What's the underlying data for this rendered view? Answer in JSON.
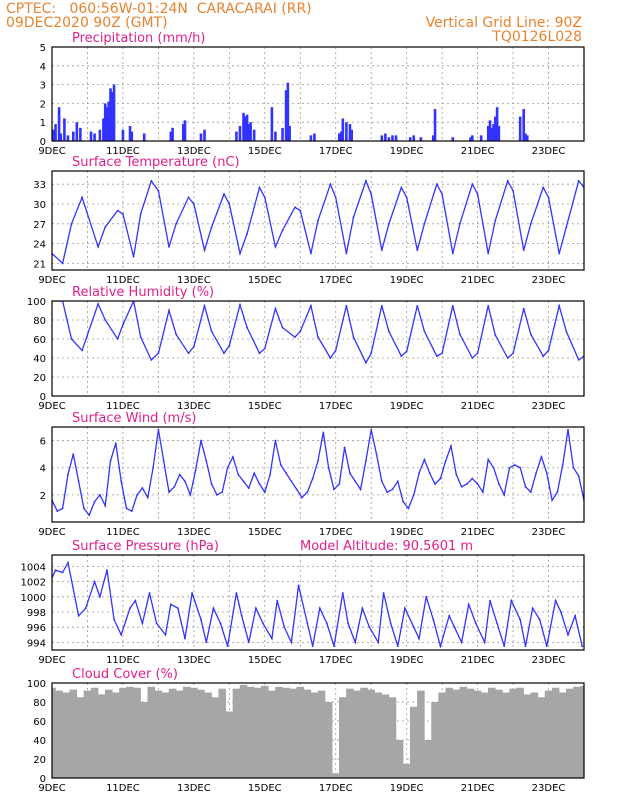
{
  "header": {
    "line1": "CPTEC:   060:56W-01:24N  CARACARAI (RR)",
    "line2": "09DEC2020 90Z (GMT)",
    "grid_note": "Vertical Grid Line: 90Z",
    "run_code": "TQ0126L028"
  },
  "colors": {
    "header": "#e8822e",
    "title": "#e0208c",
    "series": "#3333ff",
    "cloud": "#a6a6a6",
    "grid": "#9a9a9a"
  },
  "chart_data": [
    {
      "type": "bar",
      "title": "Precipitation (mm/h)",
      "ylim": [
        0,
        5
      ],
      "yticks": [
        0,
        1,
        2,
        3,
        4,
        5
      ],
      "xlim": [
        9,
        24
      ],
      "xticks": [
        "9DEC",
        "11DEC",
        "13DEC",
        "15DEC",
        "17DEC",
        "19DEC",
        "21DEC",
        "23DEC"
      ],
      "grid": true,
      "x": [
        9.05,
        9.1,
        9.2,
        9.25,
        9.35,
        9.45,
        9.6,
        9.7,
        9.8,
        10.1,
        10.2,
        10.35,
        10.45,
        10.5,
        10.55,
        10.6,
        10.65,
        10.7,
        10.75,
        11.0,
        11.2,
        11.25,
        11.6,
        12.35,
        12.4,
        12.7,
        12.75,
        13.2,
        13.3,
        14.2,
        14.3,
        14.4,
        14.45,
        14.5,
        14.55,
        14.6,
        14.7,
        15.2,
        15.3,
        15.5,
        15.6,
        15.65,
        15.7,
        16.3,
        16.4,
        17.1,
        17.15,
        17.2,
        17.3,
        17.4,
        17.45,
        18.3,
        18.4,
        18.5,
        18.6,
        18.7,
        19.1,
        19.2,
        19.4,
        19.75,
        19.8,
        20.3,
        20.8,
        20.85,
        21.1,
        21.3,
        21.35,
        21.4,
        21.45,
        21.5,
        21.55,
        21.6,
        22.2,
        22.3,
        22.35,
        22.4
      ],
      "values": [
        0.6,
        0.9,
        1.8,
        0.4,
        1.2,
        0.3,
        0.5,
        1.0,
        0.7,
        0.5,
        0.4,
        0.6,
        1.2,
        2.0,
        1.8,
        2.1,
        2.8,
        2.6,
        3.0,
        0.6,
        0.8,
        0.5,
        0.4,
        0.5,
        0.7,
        0.9,
        1.1,
        0.4,
        0.6,
        0.5,
        0.8,
        1.5,
        1.3,
        1.4,
        0.9,
        1.0,
        0.6,
        1.8,
        0.5,
        0.7,
        2.7,
        3.1,
        0.8,
        0.3,
        0.4,
        0.4,
        0.5,
        1.2,
        1.0,
        0.9,
        0.6,
        0.3,
        0.4,
        0.2,
        0.3,
        0.3,
        0.2,
        0.3,
        0.2,
        0.3,
        1.7,
        0.2,
        0.2,
        0.3,
        0.3,
        0.8,
        1.1,
        0.7,
        0.9,
        1.3,
        1.8,
        0.8,
        1.3,
        1.7,
        0.4,
        0.3
      ]
    },
    {
      "type": "line",
      "title": "Surface Temperature (nC)",
      "ylim": [
        20,
        35
      ],
      "yticks": [
        21,
        24,
        27,
        30,
        33
      ],
      "xlim": [
        9,
        24
      ],
      "xticks": [
        "9DEC",
        "11DEC",
        "13DEC",
        "15DEC",
        "17DEC",
        "19DEC",
        "21DEC",
        "23DEC"
      ],
      "grid": true,
      "x": [
        9.0,
        9.3,
        9.55,
        9.85,
        10.3,
        10.5,
        10.85,
        11.0,
        11.3,
        11.5,
        11.8,
        12.0,
        12.3,
        12.5,
        12.85,
        13.0,
        13.3,
        13.5,
        13.85,
        14.0,
        14.3,
        14.5,
        14.85,
        15.0,
        15.3,
        15.5,
        15.85,
        16.0,
        16.3,
        16.5,
        16.85,
        17.0,
        17.3,
        17.5,
        17.85,
        18.0,
        18.3,
        18.5,
        18.85,
        19.0,
        19.3,
        19.5,
        19.85,
        20.0,
        20.3,
        20.5,
        20.85,
        21.0,
        21.3,
        21.5,
        21.85,
        22.0,
        22.3,
        22.5,
        22.85,
        23.0,
        23.3,
        23.5,
        23.85,
        24.0
      ],
      "values": [
        22.5,
        21.0,
        27.0,
        31.0,
        23.5,
        26.5,
        29.0,
        28.5,
        22.0,
        28.5,
        33.5,
        32.0,
        23.5,
        27.0,
        31.0,
        30.0,
        23.0,
        26.5,
        31.5,
        30.0,
        22.5,
        25.5,
        32.5,
        31.0,
        23.5,
        26.0,
        29.5,
        29.0,
        22.5,
        27.5,
        33.0,
        31.0,
        22.5,
        28.0,
        33.5,
        31.5,
        23.0,
        27.0,
        32.5,
        31.0,
        23.0,
        27.0,
        33.0,
        31.5,
        22.5,
        27.0,
        33.0,
        31.5,
        22.5,
        27.5,
        33.5,
        32.0,
        23.0,
        27.0,
        32.5,
        31.0,
        22.5,
        26.5,
        33.5,
        32.5
      ]
    },
    {
      "type": "line",
      "title": "Relative Humidity (%)",
      "ylim": [
        0,
        100
      ],
      "yticks": [
        0,
        20,
        40,
        60,
        80,
        100
      ],
      "xlim": [
        9,
        24
      ],
      "xticks": [
        "9DEC",
        "11DEC",
        "13DEC",
        "15DEC",
        "17DEC",
        "19DEC",
        "21DEC",
        "23DEC"
      ],
      "grid": true,
      "x": [
        9.0,
        9.3,
        9.55,
        9.85,
        10.3,
        10.5,
        10.85,
        11.0,
        11.3,
        11.5,
        11.8,
        12.0,
        12.3,
        12.5,
        12.85,
        13.0,
        13.3,
        13.5,
        13.85,
        14.0,
        14.3,
        14.5,
        14.85,
        15.0,
        15.3,
        15.5,
        15.85,
        16.0,
        16.3,
        16.5,
        16.85,
        17.0,
        17.3,
        17.5,
        17.85,
        18.0,
        18.3,
        18.5,
        18.85,
        19.0,
        19.3,
        19.5,
        19.85,
        20.0,
        20.3,
        20.5,
        20.85,
        21.0,
        21.3,
        21.5,
        21.85,
        22.0,
        22.3,
        22.5,
        22.85,
        23.0,
        23.3,
        23.5,
        23.85,
        24.0
      ],
      "values": [
        100,
        100,
        60,
        48,
        97,
        80,
        60,
        75,
        100,
        62,
        38,
        45,
        90,
        65,
        45,
        52,
        95,
        68,
        45,
        53,
        96,
        72,
        45,
        50,
        92,
        72,
        62,
        68,
        95,
        62,
        40,
        48,
        95,
        62,
        35,
        45,
        95,
        68,
        42,
        47,
        95,
        68,
        42,
        45,
        95,
        65,
        40,
        45,
        95,
        64,
        40,
        45,
        92,
        65,
        42,
        48,
        95,
        68,
        38,
        42
      ]
    },
    {
      "type": "line",
      "title": "Surface Wind (m/s)",
      "ylim": [
        0,
        7
      ],
      "yticks": [
        2,
        4,
        6
      ],
      "xlim": [
        9,
        24
      ],
      "xticks": [
        "9DEC",
        "11DEC",
        "13DEC",
        "15DEC",
        "17DEC",
        "19DEC",
        "21DEC",
        "23DEC"
      ],
      "grid": true,
      "x": [
        9.0,
        9.15,
        9.3,
        9.45,
        9.6,
        9.75,
        9.9,
        10.05,
        10.2,
        10.35,
        10.5,
        10.65,
        10.8,
        10.95,
        11.1,
        11.25,
        11.4,
        11.55,
        11.7,
        11.85,
        12.0,
        12.15,
        12.3,
        12.45,
        12.6,
        12.75,
        12.9,
        13.05,
        13.2,
        13.35,
        13.5,
        13.65,
        13.8,
        13.95,
        14.1,
        14.25,
        14.4,
        14.55,
        14.7,
        14.85,
        15.0,
        15.15,
        15.3,
        15.45,
        15.6,
        15.75,
        15.9,
        16.05,
        16.2,
        16.35,
        16.5,
        16.65,
        16.8,
        16.95,
        17.1,
        17.25,
        17.4,
        17.55,
        17.7,
        17.85,
        18.0,
        18.15,
        18.3,
        18.45,
        18.6,
        18.75,
        18.9,
        19.05,
        19.2,
        19.35,
        19.5,
        19.65,
        19.8,
        19.95,
        20.1,
        20.25,
        20.4,
        20.55,
        20.7,
        20.85,
        21.0,
        21.15,
        21.3,
        21.45,
        21.6,
        21.75,
        21.9,
        22.05,
        22.2,
        22.35,
        22.5,
        22.65,
        22.8,
        22.95,
        23.1,
        23.25,
        23.4,
        23.55,
        23.7,
        23.85,
        24.0
      ],
      "values": [
        1.6,
        0.8,
        1.0,
        3.5,
        5.0,
        3.0,
        1.0,
        0.5,
        1.5,
        2.0,
        1.2,
        4.5,
        5.8,
        3.0,
        1.0,
        0.8,
        2.0,
        2.5,
        1.8,
        4.0,
        6.8,
        4.5,
        2.2,
        2.6,
        3.5,
        3.0,
        2.0,
        3.8,
        6.0,
        4.5,
        2.8,
        2.0,
        2.2,
        4.0,
        4.8,
        3.5,
        3.0,
        2.5,
        3.6,
        2.8,
        2.2,
        3.5,
        6.0,
        4.2,
        3.6,
        3.0,
        2.4,
        1.8,
        2.2,
        3.2,
        4.5,
        6.6,
        4.0,
        2.4,
        2.8,
        5.5,
        3.6,
        3.0,
        2.4,
        4.5,
        6.8,
        5.0,
        3.0,
        2.2,
        2.4,
        3.0,
        1.5,
        1.0,
        2.0,
        3.6,
        4.6,
        3.6,
        2.8,
        3.2,
        4.5,
        5.6,
        3.5,
        2.6,
        2.8,
        3.2,
        2.8,
        2.2,
        4.6,
        4.0,
        2.8,
        2.0,
        4.0,
        4.2,
        4.0,
        2.6,
        2.2,
        3.6,
        4.8,
        3.6,
        1.6,
        2.2,
        4.2,
        6.8,
        4.0,
        3.4,
        1.6
      ]
    },
    {
      "type": "line",
      "title": "Surface Pressure (hPa)",
      "annotation": "Model Altitude: 90.5601 m",
      "ylim": [
        993,
        1005.5
      ],
      "yticks": [
        994,
        996,
        998,
        1000,
        1002,
        1004
      ],
      "xlim": [
        9,
        24
      ],
      "xticks": [
        "9DEC",
        "11DEC",
        "13DEC",
        "15DEC",
        "17DEC",
        "19DEC",
        "21DEC",
        "23DEC"
      ],
      "grid": true,
      "x": [
        9.0,
        9.1,
        9.3,
        9.45,
        9.75,
        9.95,
        10.2,
        10.35,
        10.55,
        10.75,
        10.95,
        11.2,
        11.35,
        11.55,
        11.75,
        11.95,
        12.2,
        12.35,
        12.55,
        12.75,
        12.95,
        13.2,
        13.35,
        13.55,
        13.75,
        13.95,
        14.2,
        14.35,
        14.55,
        14.75,
        14.95,
        15.2,
        15.35,
        15.55,
        15.75,
        15.95,
        16.2,
        16.35,
        16.55,
        16.75,
        16.95,
        17.2,
        17.35,
        17.55,
        17.75,
        17.95,
        18.2,
        18.35,
        18.55,
        18.75,
        18.95,
        19.2,
        19.35,
        19.55,
        19.75,
        19.95,
        20.2,
        20.35,
        20.55,
        20.75,
        20.95,
        21.2,
        21.35,
        21.55,
        21.75,
        21.95,
        22.2,
        22.35,
        22.55,
        22.75,
        22.95,
        23.2,
        23.35,
        23.55,
        23.75,
        23.95
      ],
      "values": [
        1002.5,
        1003.5,
        1003.2,
        1004.5,
        997.5,
        998.5,
        1002.0,
        1000.0,
        1003.5,
        997.0,
        995.0,
        998.5,
        999.5,
        996.5,
        1000.5,
        996.5,
        995.0,
        999.0,
        998.5,
        994.5,
        1000.5,
        997.0,
        994.0,
        998.5,
        996.5,
        993.5,
        1000.5,
        997.5,
        994.0,
        998.5,
        996.5,
        994.5,
        999.5,
        996.0,
        994.0,
        1001.5,
        996.5,
        993.5,
        998.5,
        996.5,
        993.5,
        1000.5,
        996.5,
        994.0,
        998.5,
        996.0,
        994.0,
        1000.5,
        996.5,
        993.5,
        998.5,
        996.0,
        994.5,
        1000.0,
        997.0,
        993.5,
        997.5,
        996.0,
        994.0,
        999.0,
        996.5,
        994.0,
        999.5,
        996.5,
        993.5,
        999.5,
        997.0,
        993.5,
        998.5,
        997.0,
        993.5,
        999.5,
        998.0,
        995.0,
        997.5,
        993.5
      ]
    },
    {
      "type": "area",
      "title": "Cloud Cover (%)",
      "ylim": [
        0,
        100
      ],
      "yticks": [
        0,
        20,
        40,
        60,
        80,
        100
      ],
      "xlim": [
        9,
        24
      ],
      "xticks": [
        "9DEC",
        "11DEC",
        "13DEC",
        "15DEC",
        "17DEC",
        "19DEC",
        "21DEC",
        "23DEC"
      ],
      "grid": true,
      "x": [
        9.0,
        9.2,
        9.4,
        9.6,
        9.8,
        10.0,
        10.2,
        10.4,
        10.6,
        10.8,
        11.0,
        11.2,
        11.4,
        11.6,
        11.8,
        12.0,
        12.2,
        12.4,
        12.6,
        12.8,
        13.0,
        13.2,
        13.4,
        13.6,
        13.8,
        14.0,
        14.2,
        14.4,
        14.6,
        14.8,
        15.0,
        15.2,
        15.4,
        15.6,
        15.8,
        16.0,
        16.2,
        16.4,
        16.6,
        16.8,
        17.0,
        17.2,
        17.4,
        17.6,
        17.8,
        18.0,
        18.2,
        18.4,
        18.6,
        18.8,
        19.0,
        19.2,
        19.4,
        19.6,
        19.8,
        20.0,
        20.2,
        20.4,
        20.6,
        20.8,
        21.0,
        21.2,
        21.4,
        21.6,
        21.8,
        22.0,
        22.2,
        22.4,
        22.6,
        22.8,
        23.0,
        23.2,
        23.4,
        23.6,
        23.8,
        24.0
      ],
      "values": [
        95,
        92,
        90,
        93,
        85,
        92,
        95,
        88,
        93,
        90,
        95,
        96,
        95,
        80,
        96,
        92,
        90,
        94,
        92,
        96,
        95,
        93,
        90,
        85,
        94,
        70,
        94,
        98,
        96,
        95,
        97,
        92,
        96,
        95,
        94,
        96,
        93,
        90,
        92,
        80,
        5,
        85,
        94,
        92,
        95,
        93,
        90,
        88,
        85,
        40,
        15,
        75,
        92,
        40,
        80,
        90,
        95,
        93,
        96,
        94,
        92,
        90,
        95,
        93,
        90,
        94,
        95,
        88,
        90,
        85,
        92,
        95,
        90,
        94,
        96,
        97
      ]
    }
  ]
}
